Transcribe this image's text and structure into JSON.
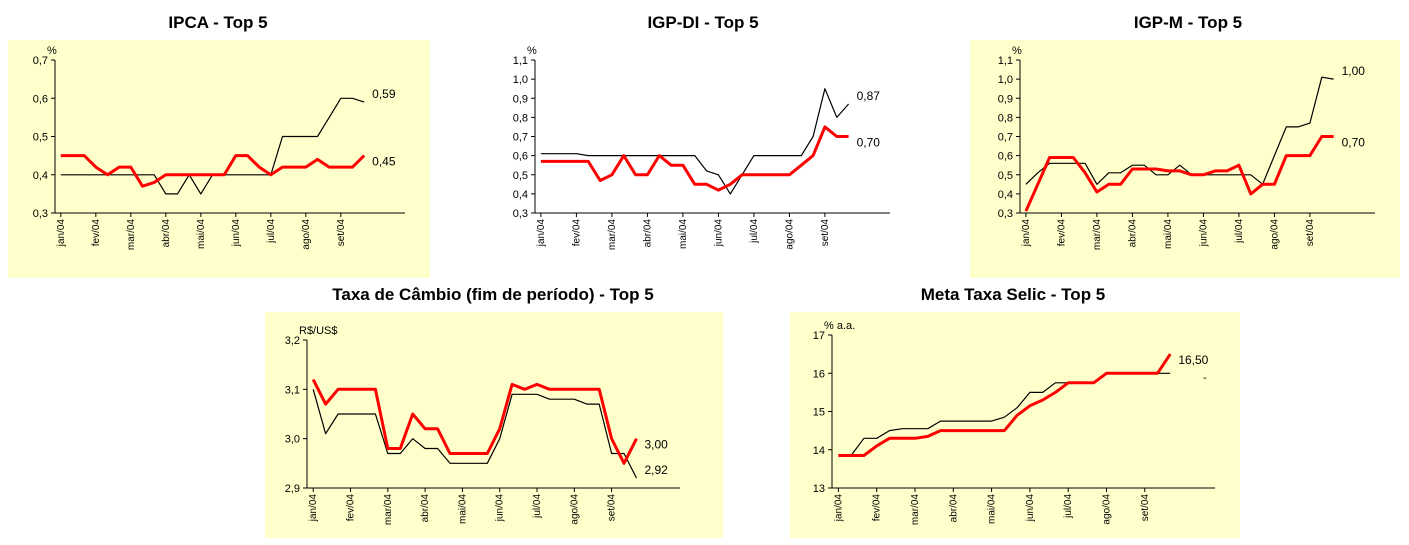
{
  "chart_data": [
    {
      "type": "line",
      "title": "IPCA - Top 5",
      "ylabel": "%",
      "categories": [
        "jan/04",
        null,
        null,
        "fev/04",
        null,
        null,
        "mar/04",
        null,
        null,
        "abr/04",
        null,
        null,
        "mai/04",
        null,
        null,
        "jun/04",
        null,
        null,
        "jul/04",
        null,
        null,
        "ago/04",
        null,
        null,
        "set/04",
        null,
        null
      ],
      "series": [
        {
          "color": "#000000",
          "values": [
            0.4,
            0.4,
            0.4,
            0.4,
            0.4,
            0.4,
            0.4,
            0.4,
            0.4,
            0.35,
            0.35,
            0.4,
            0.35,
            0.4,
            0.4,
            0.4,
            0.4,
            0.4,
            0.4,
            0.5,
            0.5,
            0.5,
            0.5,
            0.55,
            0.6,
            0.6,
            0.59
          ],
          "value_labels": [
            null,
            null,
            null,
            null,
            null,
            null,
            null,
            null,
            null,
            null,
            null,
            null,
            null,
            null,
            null,
            null,
            null,
            null,
            null,
            null,
            null,
            null,
            null,
            null,
            null,
            null,
            "0,59"
          ]
        },
        {
          "color": "#ff0000",
          "values": [
            0.45,
            0.45,
            0.45,
            0.42,
            0.4,
            0.42,
            0.42,
            0.37,
            0.38,
            0.4,
            0.4,
            0.4,
            0.4,
            0.4,
            0.4,
            0.45,
            0.45,
            0.42,
            0.4,
            0.42,
            0.42,
            0.42,
            0.44,
            0.42,
            0.42,
            0.42,
            0.45
          ],
          "value_labels": [
            null,
            null,
            null,
            null,
            null,
            null,
            null,
            null,
            null,
            null,
            null,
            null,
            null,
            null,
            null,
            null,
            null,
            null,
            null,
            null,
            null,
            null,
            null,
            null,
            null,
            null,
            "0,45"
          ]
        }
      ],
      "ylim": [
        0.3,
        0.7
      ],
      "yticks": [
        {
          "value": 0.3,
          "label": "0,3"
        },
        {
          "value": 0.4,
          "label": "0,4"
        },
        {
          "value": 0.5,
          "label": "0,5"
        },
        {
          "value": 0.6,
          "label": "0,6"
        },
        {
          "value": 0.7,
          "label": "0,7"
        }
      ]
    },
    {
      "type": "line",
      "title": "IGP-DI - Top 5",
      "ylabel": "%",
      "categories": [
        "jan/04",
        null,
        null,
        "fev/04",
        null,
        null,
        "mar/04",
        null,
        null,
        "abr/04",
        null,
        null,
        "mai/04",
        null,
        null,
        "jun/04",
        null,
        null,
        "jul/04",
        null,
        null,
        "ago/04",
        null,
        null,
        "set/04",
        null,
        null
      ],
      "series": [
        {
          "color": "#000000",
          "values": [
            0.61,
            0.61,
            0.61,
            0.61,
            0.6,
            0.6,
            0.6,
            0.6,
            0.6,
            0.6,
            0.6,
            0.6,
            0.6,
            0.6,
            0.52,
            0.5,
            0.4,
            0.5,
            0.6,
            0.6,
            0.6,
            0.6,
            0.6,
            0.7,
            0.95,
            0.8,
            0.87
          ],
          "value_labels": [
            null,
            null,
            null,
            null,
            null,
            null,
            null,
            null,
            null,
            null,
            null,
            null,
            null,
            null,
            null,
            null,
            null,
            null,
            null,
            null,
            null,
            null,
            null,
            null,
            null,
            null,
            "0,87"
          ]
        },
        {
          "color": "#ff0000",
          "values": [
            0.57,
            0.57,
            0.57,
            0.57,
            0.57,
            0.47,
            0.5,
            0.6,
            0.5,
            0.5,
            0.6,
            0.55,
            0.55,
            0.45,
            0.45,
            0.42,
            0.45,
            0.5,
            0.5,
            0.5,
            0.5,
            0.5,
            0.55,
            0.6,
            0.75,
            0.7,
            0.7
          ],
          "value_labels": [
            null,
            null,
            null,
            null,
            null,
            null,
            null,
            null,
            null,
            null,
            null,
            null,
            null,
            null,
            null,
            null,
            null,
            null,
            null,
            null,
            null,
            null,
            null,
            null,
            null,
            null,
            "0,70"
          ]
        }
      ],
      "ylim": [
        0.3,
        1.1
      ],
      "yticks": [
        {
          "value": 0.3,
          "label": "0,3"
        },
        {
          "value": 0.4,
          "label": "0,4"
        },
        {
          "value": 0.5,
          "label": "0,5"
        },
        {
          "value": 0.6,
          "label": "0,6"
        },
        {
          "value": 0.7,
          "label": "0,7"
        },
        {
          "value": 0.8,
          "label": "0,8"
        },
        {
          "value": 0.9,
          "label": "0,9"
        },
        {
          "value": 1.0,
          "label": "1,0"
        },
        {
          "value": 1.1,
          "label": "1,1"
        }
      ]
    },
    {
      "type": "line",
      "title": "IGP-M - Top 5",
      "ylabel": "%",
      "categories": [
        "jan/04",
        null,
        null,
        "fev/04",
        null,
        null,
        "mar/04",
        null,
        null,
        "abr/04",
        null,
        null,
        "mai/04",
        null,
        null,
        "jun/04",
        null,
        null,
        "jul/04",
        null,
        null,
        "ago/04",
        null,
        null,
        "set/04",
        null,
        null
      ],
      "series": [
        {
          "color": "#000000",
          "values": [
            0.45,
            0.51,
            0.56,
            0.56,
            0.56,
            0.56,
            0.45,
            0.51,
            0.51,
            0.55,
            0.55,
            0.5,
            0.5,
            0.55,
            0.5,
            0.5,
            0.5,
            0.5,
            0.5,
            0.5,
            0.45,
            0.6,
            0.75,
            0.75,
            0.77,
            1.01,
            1.0
          ],
          "value_labels": [
            null,
            null,
            null,
            null,
            null,
            null,
            null,
            null,
            null,
            null,
            null,
            null,
            null,
            null,
            null,
            null,
            null,
            null,
            null,
            null,
            null,
            null,
            null,
            null,
            null,
            null,
            "1,00"
          ]
        },
        {
          "color": "#ff0000",
          "values": [
            0.31,
            0.45,
            0.59,
            0.59,
            0.59,
            0.51,
            0.41,
            0.45,
            0.45,
            0.53,
            0.53,
            0.53,
            0.52,
            0.52,
            0.5,
            0.5,
            0.52,
            0.52,
            0.55,
            0.4,
            0.45,
            0.45,
            0.6,
            0.6,
            0.6,
            0.7,
            0.7
          ],
          "value_labels": [
            null,
            null,
            null,
            null,
            null,
            null,
            null,
            null,
            null,
            null,
            null,
            null,
            null,
            null,
            null,
            null,
            null,
            null,
            null,
            null,
            null,
            null,
            null,
            null,
            null,
            null,
            "0,70"
          ]
        }
      ],
      "ylim": [
        0.3,
        1.1
      ],
      "yticks": [
        {
          "value": 0.3,
          "label": "0,3"
        },
        {
          "value": 0.4,
          "label": "0,4"
        },
        {
          "value": 0.5,
          "label": "0,5"
        },
        {
          "value": 0.6,
          "label": "0,6"
        },
        {
          "value": 0.7,
          "label": "0,7"
        },
        {
          "value": 0.8,
          "label": "0,8"
        },
        {
          "value": 0.9,
          "label": "0,9"
        },
        {
          "value": 1.0,
          "label": "1,0"
        },
        {
          "value": 1.1,
          "label": "1,1"
        }
      ]
    },
    {
      "type": "line",
      "title": "Taxa de Câmbio (fim de período) - Top 5",
      "ylabel": "R$/US$",
      "categories": [
        "jan/04",
        null,
        null,
        "fev/04",
        null,
        null,
        "mar/04",
        null,
        null,
        "abr/04",
        null,
        null,
        "mai/04",
        null,
        null,
        "jun/04",
        null,
        null,
        "jul/04",
        null,
        null,
        "ago/04",
        null,
        null,
        "set/04",
        null,
        null
      ],
      "series": [
        {
          "color": "#000000",
          "values": [
            3.1,
            3.01,
            3.05,
            3.05,
            3.05,
            3.05,
            2.97,
            2.97,
            3.0,
            2.98,
            2.98,
            2.95,
            2.95,
            2.95,
            2.95,
            3.0,
            3.09,
            3.09,
            3.09,
            3.08,
            3.08,
            3.08,
            3.07,
            3.07,
            2.97,
            2.97,
            2.92
          ],
          "value_labels": [
            null,
            null,
            null,
            null,
            null,
            null,
            null,
            null,
            null,
            null,
            null,
            null,
            null,
            null,
            null,
            null,
            null,
            null,
            null,
            null,
            null,
            null,
            null,
            null,
            null,
            null,
            "2,92"
          ]
        },
        {
          "color": "#ff0000",
          "values": [
            3.12,
            3.07,
            3.1,
            3.1,
            3.1,
            3.1,
            2.98,
            2.98,
            3.05,
            3.02,
            3.02,
            2.97,
            2.97,
            2.97,
            2.97,
            3.02,
            3.11,
            3.1,
            3.11,
            3.1,
            3.1,
            3.1,
            3.1,
            3.1,
            3.0,
            2.95,
            3.0
          ],
          "value_labels": [
            null,
            null,
            null,
            null,
            null,
            null,
            null,
            null,
            null,
            null,
            null,
            null,
            null,
            null,
            null,
            null,
            null,
            null,
            null,
            null,
            null,
            null,
            null,
            null,
            null,
            null,
            "3,00"
          ]
        }
      ],
      "ylim": [
        2.9,
        3.2
      ],
      "yticks": [
        {
          "value": 2.9,
          "label": "2,9"
        },
        {
          "value": 3.0,
          "label": "3,0"
        },
        {
          "value": 3.1,
          "label": "3,1"
        },
        {
          "value": 3.2,
          "label": "3,2"
        }
      ]
    },
    {
      "type": "line",
      "title": "Meta Taxa Selic - Top 5",
      "ylabel": "% a.a.",
      "annotation": "-",
      "categories": [
        "jan/04",
        null,
        null,
        "fev/04",
        null,
        null,
        "mar/04",
        null,
        null,
        "abr/04",
        null,
        null,
        "mai/04",
        null,
        null,
        "jun/04",
        null,
        null,
        "jul/04",
        null,
        null,
        "ago/04",
        null,
        null,
        "set/04",
        null,
        null
      ],
      "series": [
        {
          "color": "#000000",
          "values": [
            13.85,
            13.85,
            14.3,
            14.3,
            14.5,
            14.55,
            14.55,
            14.55,
            14.75,
            14.75,
            14.75,
            14.75,
            14.75,
            14.85,
            15.1,
            15.5,
            15.5,
            15.75,
            15.75,
            15.75,
            15.75,
            16,
            16,
            16,
            16,
            16,
            16
          ]
        },
        {
          "color": "#ff0000",
          "values": [
            13.85,
            13.85,
            13.85,
            14.1,
            14.3,
            14.3,
            14.3,
            14.35,
            14.5,
            14.5,
            14.5,
            14.5,
            14.5,
            14.5,
            14.9,
            15.15,
            15.3,
            15.5,
            15.75,
            15.75,
            15.75,
            16,
            16,
            16,
            16,
            16,
            16.5
          ],
          "value_labels": [
            null,
            null,
            null,
            null,
            null,
            null,
            null,
            null,
            null,
            null,
            null,
            null,
            null,
            null,
            null,
            null,
            null,
            null,
            null,
            null,
            null,
            null,
            null,
            null,
            null,
            null,
            "16,50"
          ]
        }
      ],
      "ylim": [
        13,
        17
      ],
      "yticks": [
        13,
        14,
        15,
        16,
        17
      ]
    }
  ]
}
